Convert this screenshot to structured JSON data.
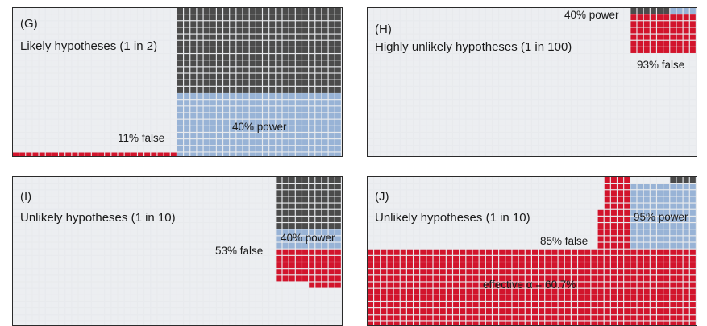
{
  "colors": {
    "empty": "#eceef1",
    "true_negative_grid": "#ffffff",
    "dark": "#4b4b4b",
    "power": "#98b3d6",
    "false": "#d2142c"
  },
  "panels": [
    {
      "id": "G",
      "letter": "(G)",
      "title": "Likely hypotheses (1 in 2)",
      "annotations": {
        "false_label": "11% false",
        "power_label": "40% power"
      }
    },
    {
      "id": "H",
      "letter": "(H)",
      "title": "Highly unlikely hypotheses (1 in 100)",
      "annotations": {
        "power_label": "40% power",
        "false_label": "93% false"
      }
    },
    {
      "id": "I",
      "letter": "(I)",
      "title": "Unlikely hypotheses (1 in 10)",
      "annotations": {
        "power_label": "40% power",
        "false_label": "53% false"
      }
    },
    {
      "id": "J",
      "letter": "(J)",
      "title": "Unlikely hypotheses (1 in 10)",
      "annotations": {
        "power_label": "95% power",
        "false_label": "85% false",
        "alpha_label": "effective α = 60.7%"
      }
    }
  ]
}
